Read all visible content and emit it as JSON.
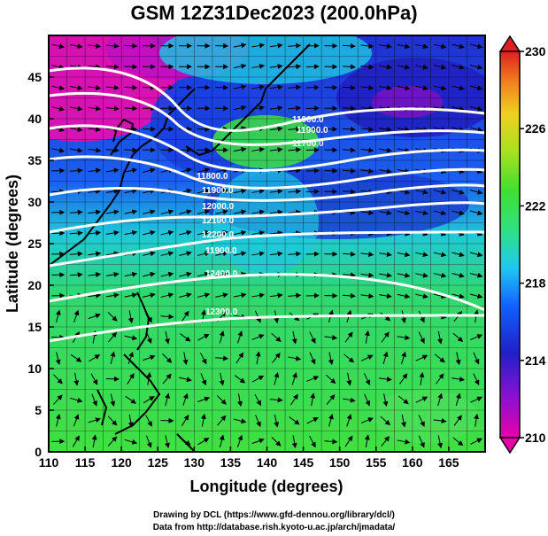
{
  "title": "GSM 12Z31Dec2023 (200.0hPa)",
  "x_axis": {
    "label": "Longitude (degrees)",
    "range": [
      110,
      170
    ],
    "ticks": [
      "110",
      "115",
      "120",
      "125",
      "130",
      "135",
      "140",
      "145",
      "150",
      "155",
      "160",
      "165"
    ]
  },
  "y_axis": {
    "label": "Latitude  (degrees)",
    "range": [
      0,
      50
    ],
    "ticks": [
      "0",
      "5",
      "10",
      "15",
      "20",
      "25",
      "30",
      "35",
      "40",
      "45"
    ]
  },
  "colorbar": {
    "range": [
      210,
      230
    ],
    "labels": [
      "210",
      "214",
      "218",
      "222",
      "226",
      "230"
    ],
    "colors": [
      "#e800a8",
      "#3030d0",
      "#1070ff",
      "#30d8e0",
      "#30e070",
      "#70e030",
      "#d8e020",
      "#f0a020",
      "#e83020"
    ]
  },
  "contour_labels": [
    "11800.0",
    "11900.0",
    "11700.0",
    "11900.0",
    "11900.0",
    "12000.0",
    "12100.0",
    "12200.0",
    "11900.0",
    "12400.0",
    "12300.0"
  ],
  "credits": {
    "line1": "Drawing by DCL (https://www.gfd-dennou.org/library/dcl/)",
    "line2": "Data from http://database.rish.kyoto-u.ac.jp/arch/jmadata/"
  }
}
